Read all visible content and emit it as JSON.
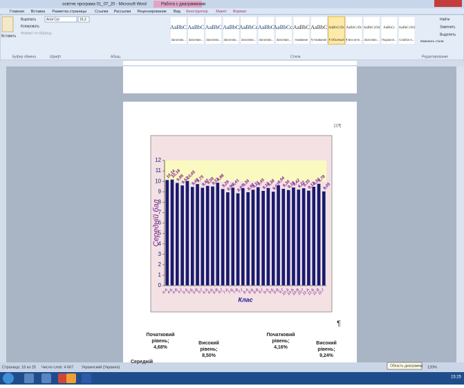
{
  "window": {
    "title": "освітнє програма 01_07_20 - Microsoft Word",
    "context": "Работа с диаграммами"
  },
  "tabs": [
    "Главная",
    "Вставка",
    "Разметка страницы",
    "Ссылки",
    "Рассылки",
    "Рецензирование",
    "Вид",
    "Конструктор",
    "Макет",
    "Формат"
  ],
  "clipboard": [
    "Вырезать",
    "Копировать",
    "Формат по образцу"
  ],
  "paste": "Вставить",
  "font": {
    "name": "Arial Cyr",
    "size": "16,3"
  },
  "groups": [
    "Буфер обмена",
    "Шрифт",
    "Абзац",
    "Стили",
    "Редактирование"
  ],
  "styles": [
    {
      "sample": "AaBbC",
      "name": "Заголово..."
    },
    {
      "sample": "AaBbC",
      "name": "Заголово..."
    },
    {
      "sample": "AaBbC",
      "name": "Заголово..."
    },
    {
      "sample": "AaBbC",
      "name": "Заголово..."
    },
    {
      "sample": "AaBbCc",
      "name": "Заголово..."
    },
    {
      "sample": "AaBbC",
      "name": "Заголово..."
    },
    {
      "sample": "AaBbCcI",
      "name": "Заголово..."
    },
    {
      "sample": "AaBbC",
      "name": "Название"
    },
    {
      "sample": "AaBbC",
      "name": "¶ Название"
    },
    {
      "sample": "AaBbCcDc",
      "name": "¶ Обычный"
    },
    {
      "sample": "AaBbCcDc",
      "name": "¶ Без инте..."
    },
    {
      "sample": "AaBbCcDd",
      "name": "Заголово..."
    },
    {
      "sample": "AaBbCc",
      "name": "Подзагол..."
    },
    {
      "sample": "AaBbCcDd",
      "name": "Слабое в..."
    }
  ],
  "editing": [
    "Найти",
    "Заменить",
    "Выделить"
  ],
  "change_styles": "Изменить стили",
  "page_number": "10¶",
  "pilcrow": "¶",
  "pie_labels": [
    [
      "Початковий",
      "рівень;",
      "4,68%"
    ],
    [
      "Високий",
      "рівень;",
      "8,50%"
    ],
    [
      "Початковий",
      "рівень;",
      "4,16%"
    ],
    [
      "Високий",
      "рівень;",
      "9,24%"
    ],
    [
      "Середній"
    ]
  ],
  "status": {
    "page": "Страница: 18 из 25",
    "words": "Число слов: 4 667",
    "language": "Украинский (Украина)",
    "tooltip": "Область диаграммы",
    "zoom": "120%"
  },
  "clock": "15:25",
  "chart_data": {
    "type": "bar",
    "x_label": "Клас",
    "y_label": "Середній бал",
    "categories": [
      "4-А",
      "4-Б",
      "4-В",
      "4-Г",
      "5-А",
      "5-Б",
      "5-В",
      "5-Г",
      "6-А",
      "6-Б",
      "6-В",
      "6-Г",
      "7-А",
      "7-Б",
      "7-В",
      "7-Г",
      "8-А",
      "8-Б",
      "8-В",
      "8-Г",
      "9-А",
      "9-Б",
      "9-В",
      "9-Г",
      "10-А",
      "10-Б",
      "10-В",
      "10-Г",
      "11-А",
      "11-Б",
      "11-В",
      "11-Г"
    ],
    "values": [
      10.14,
      10.18,
      9.86,
      9.62,
      10.05,
      9.48,
      9.75,
      9.4,
      9.58,
      9.52,
      9.88,
      9.28,
      8.96,
      9.41,
      8.87,
      9.36,
      8.98,
      9.21,
      9.45,
      9.1,
      9.38,
      9.02,
      9.64,
      9.3,
      9.18,
      9.42,
      9.22,
      9.35,
      9.12,
      9.5,
      9.78,
      9.05
    ],
    "value_labels": [
      "10,14",
      "10,18",
      "9,86",
      "9,62",
      "10,05",
      "9,48",
      "9,75",
      "9,40",
      "9,58",
      "9,52",
      "9,88",
      "9,28",
      "8,96",
      "9,41",
      "8,87",
      "9,36",
      "8,98",
      "9,21",
      "9,45",
      "9,10",
      "9,38",
      "9,02",
      "9,64",
      "9,30",
      "9,18",
      "9,42",
      "9,22",
      "9,35",
      "9,12",
      "9,50",
      "9,78",
      "9,05"
    ],
    "color": "#1a1a6e",
    "label_color": "#7a1f8c",
    "ylim": [
      0,
      12
    ],
    "yticks": [
      0,
      1,
      2,
      3,
      4,
      5,
      6,
      7,
      8,
      9,
      10,
      11,
      12
    ],
    "grid": false
  }
}
